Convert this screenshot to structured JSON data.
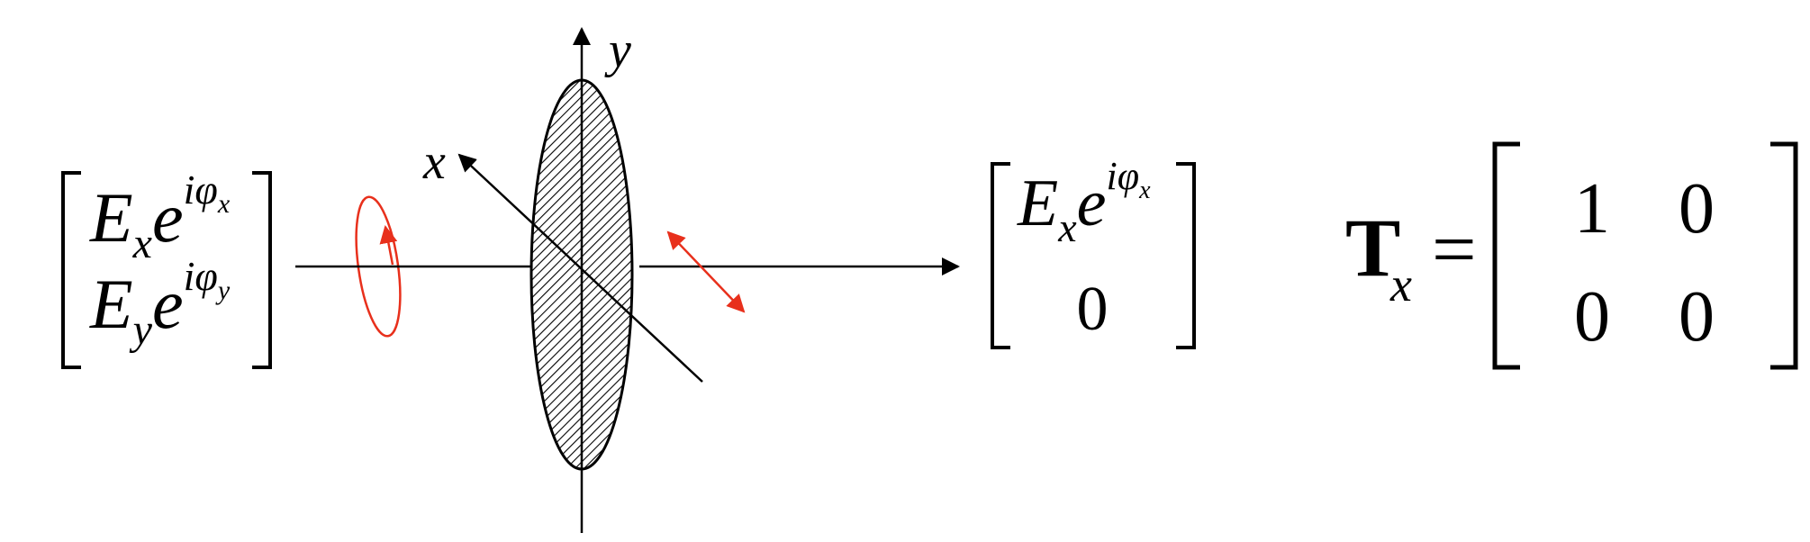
{
  "axes": {
    "y_label": "y",
    "x_label": "x"
  },
  "input_vector": {
    "row1": {
      "amp": "E",
      "amp_sub": "x",
      "exp_base": "e",
      "exp_i": "i",
      "phi": "φ",
      "phi_sub": "x"
    },
    "row2": {
      "amp": "E",
      "amp_sub": "y",
      "exp_base": "e",
      "exp_i": "i",
      "phi": "φ",
      "phi_sub": "y"
    }
  },
  "output_vector": {
    "row1": {
      "amp": "E",
      "amp_sub": "x",
      "exp_base": "e",
      "exp_i": "i",
      "phi": "φ",
      "phi_sub": "x"
    },
    "row2": "0"
  },
  "matrix": {
    "symbol": "T",
    "subscript": "x",
    "equals": "=",
    "cells": [
      [
        "1",
        "0"
      ],
      [
        "0",
        "0"
      ]
    ]
  },
  "colors": {
    "ink": "#000000",
    "polarization": "#e8301c"
  }
}
